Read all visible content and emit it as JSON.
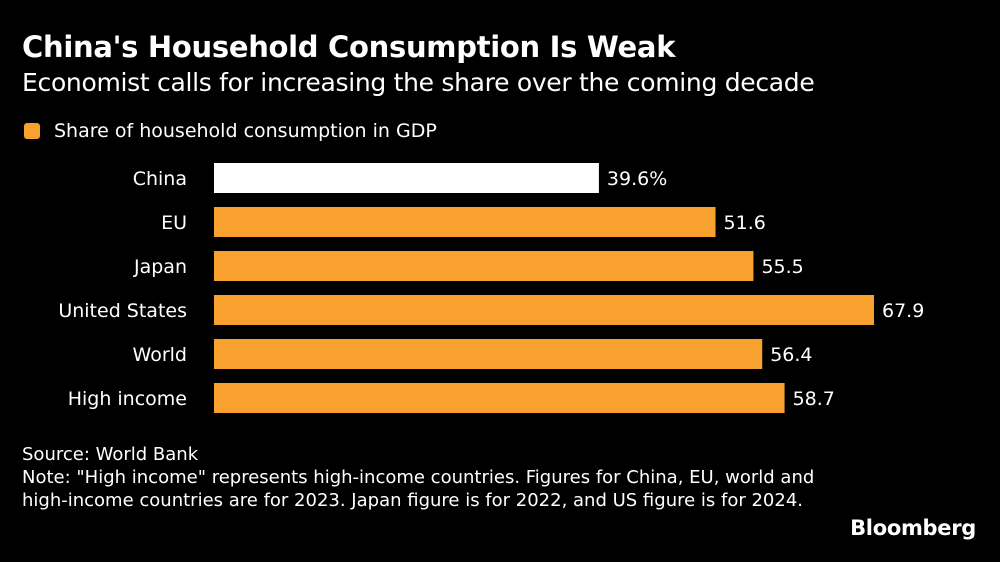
{
  "title": "China's Household Consumption Is Weak",
  "subtitle": "Economist calls for increasing the share over the coming decade",
  "source": "Source: World Bank",
  "note": "Note: \"High income\" represents high-income countries. Figures for China, EU, world and high-income countries are for 2023. Japan figure is for 2022, and US figure is for 2024.",
  "logo": "Bloomberg",
  "chart_data": {
    "type": "bar",
    "orientation": "horizontal",
    "legend": {
      "label": "Share of household consumption in GDP",
      "placement": "top-left"
    },
    "categories": [
      "China",
      "EU",
      "Japan",
      "United States",
      "World",
      "High income"
    ],
    "values": [
      39.6,
      51.6,
      55.5,
      67.9,
      56.4,
      58.7
    ],
    "data_labels": [
      "39.6%",
      "51.6",
      "55.5",
      "67.9",
      "56.4",
      "58.7"
    ],
    "highlight": "China",
    "xlim": [
      0,
      70
    ],
    "grid": false,
    "colors": {
      "bar": "#F9A12E",
      "highlight": "#FFFFFF",
      "background": "#000000",
      "text": "#FFFFFF"
    }
  }
}
